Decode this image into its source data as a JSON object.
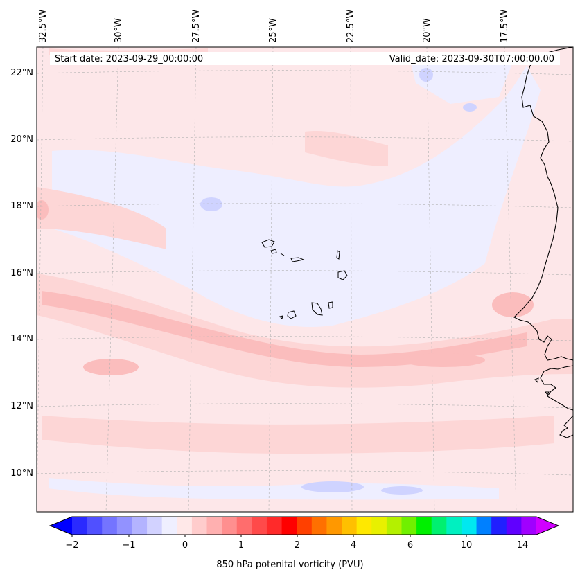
{
  "header": {
    "start_date": "Start date: 2023-09-29_00:00:00",
    "valid_date": "Valid_date: 2023-09-30T07:00:00.00"
  },
  "map": {
    "longitude_labels": [
      "32.5°W",
      "30°W",
      "27.5°W",
      "25°W",
      "22.5°W",
      "20°W",
      "17.5°W"
    ],
    "latitude_labels": [
      "22°N",
      "20°N",
      "18°N",
      "16°N",
      "14°N",
      "12°N",
      "10°N"
    ],
    "background_color": "#fde7e9",
    "colors": {
      "weak_negative": "#eeeeff",
      "negative": "#cfd3ff",
      "weak_positive": "#fdd6d6",
      "positive": "#fbbdbd",
      "coastline": "#000000"
    }
  },
  "colorbar": {
    "label": "850 hPa potenital vorticity (PVU)",
    "ticks": [
      "−2",
      "−1",
      "0",
      "1",
      "2",
      "4",
      "6",
      "10",
      "14"
    ],
    "colors": [
      "#0000ff",
      "#2a2aff",
      "#5050ff",
      "#7474ff",
      "#9292ff",
      "#b3b3ff",
      "#d2d2ff",
      "#efefff",
      "#ffe8e8",
      "#ffcccc",
      "#ffb0b0",
      "#ff8f8f",
      "#ff6d6d",
      "#ff4a4a",
      "#ff2a2a",
      "#ff0000",
      "#ff4000",
      "#ff7000",
      "#ff9800",
      "#ffc000",
      "#ffe800",
      "#e8f000",
      "#b4f000",
      "#70f000",
      "#00f000",
      "#00f070",
      "#00f0c0",
      "#00e8f0",
      "#0080ff",
      "#2020ff",
      "#6000ff",
      "#a000ff",
      "#d000ff"
    ]
  }
}
